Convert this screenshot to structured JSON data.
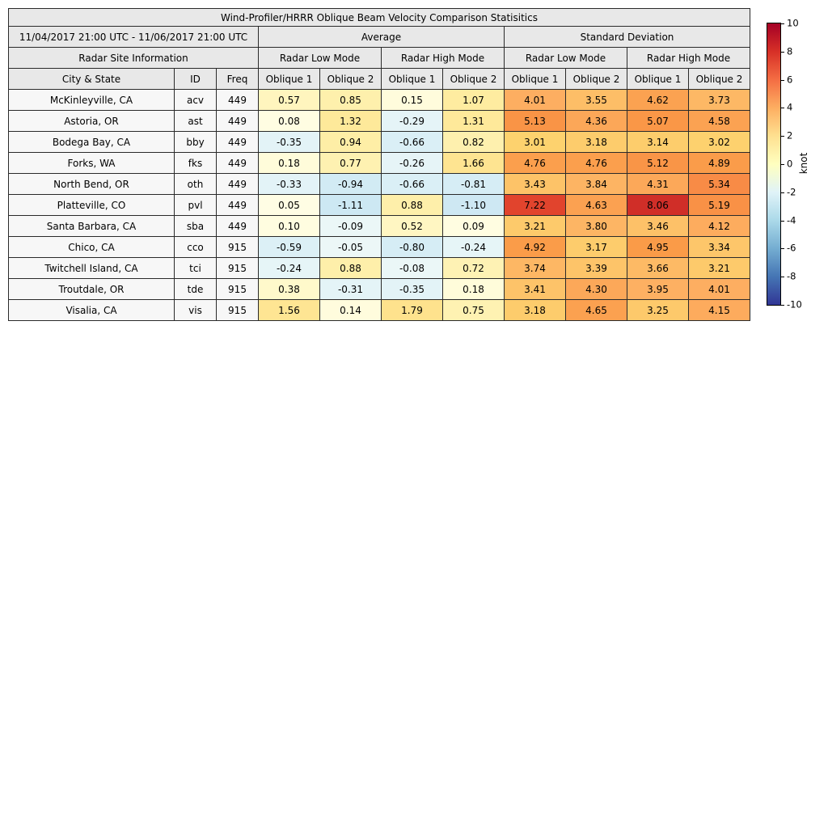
{
  "chart_data": {
    "type": "table",
    "title": "Wind-Profiler/HRRR Oblique Beam Velocity Comparison Statisitics",
    "period": "11/04/2017 21:00 UTC - 11/06/2017 21:00 UTC",
    "site_info_header": "Radar Site Information",
    "group_headers": [
      "Average",
      "Standard Deviation"
    ],
    "mode_headers": [
      "Radar Low Mode",
      "Radar High Mode",
      "Radar Low Mode",
      "Radar High Mode"
    ],
    "column_labels": {
      "city": "City & State",
      "id": "ID",
      "freq": "Freq",
      "oblique1": "Oblique 1",
      "oblique2": "Oblique 2"
    },
    "value_columns": [
      "avg_low_oblique1",
      "avg_low_oblique2",
      "avg_high_oblique1",
      "avg_high_oblique2",
      "sd_low_oblique1",
      "sd_low_oblique2",
      "sd_high_oblique1",
      "sd_high_oblique2"
    ],
    "rows": [
      {
        "city": "McKinleyville, CA",
        "id": "acv",
        "freq": "449",
        "values": [
          0.57,
          0.85,
          0.15,
          1.07,
          4.01,
          3.55,
          4.62,
          3.73
        ]
      },
      {
        "city": "Astoria, OR",
        "id": "ast",
        "freq": "449",
        "values": [
          0.08,
          1.32,
          -0.29,
          1.31,
          5.13,
          4.36,
          5.07,
          4.58
        ]
      },
      {
        "city": "Bodega Bay, CA",
        "id": "bby",
        "freq": "449",
        "values": [
          -0.35,
          0.94,
          -0.66,
          0.82,
          3.01,
          3.18,
          3.14,
          3.02
        ]
      },
      {
        "city": "Forks, WA",
        "id": "fks",
        "freq": "449",
        "values": [
          0.18,
          0.77,
          -0.26,
          1.66,
          4.76,
          4.76,
          5.12,
          4.89
        ]
      },
      {
        "city": "North Bend, OR",
        "id": "oth",
        "freq": "449",
        "values": [
          -0.33,
          -0.94,
          -0.66,
          -0.81,
          3.43,
          3.84,
          4.31,
          5.34
        ]
      },
      {
        "city": "Platteville, CO",
        "id": "pvl",
        "freq": "449",
        "values": [
          0.05,
          -1.11,
          0.88,
          -1.1,
          7.22,
          4.63,
          8.06,
          5.19
        ]
      },
      {
        "city": "Santa Barbara, CA",
        "id": "sba",
        "freq": "449",
        "values": [
          0.1,
          -0.09,
          0.52,
          0.09,
          3.21,
          3.8,
          3.46,
          4.12
        ]
      },
      {
        "city": "Chico, CA",
        "id": "cco",
        "freq": "915",
        "values": [
          -0.59,
          -0.05,
          -0.8,
          -0.24,
          4.92,
          3.17,
          4.95,
          3.34
        ]
      },
      {
        "city": "Twitchell Island, CA",
        "id": "tci",
        "freq": "915",
        "values": [
          -0.24,
          0.88,
          -0.08,
          0.72,
          3.74,
          3.39,
          3.66,
          3.21
        ]
      },
      {
        "city": "Troutdale, OR",
        "id": "tde",
        "freq": "915",
        "values": [
          0.38,
          -0.31,
          -0.35,
          0.18,
          3.41,
          4.3,
          3.95,
          4.01
        ]
      },
      {
        "city": "Visalia, CA",
        "id": "vis",
        "freq": "915",
        "values": [
          1.56,
          0.14,
          1.79,
          0.75,
          3.18,
          4.65,
          3.25,
          4.15
        ]
      }
    ],
    "colorbar": {
      "label": "knot",
      "min": -10,
      "max": 10,
      "ticks": [
        10,
        8,
        6,
        4,
        2,
        0,
        -2,
        -4,
        -6,
        -8,
        -10
      ],
      "gradient_stops": [
        "#a50026",
        "#d73027",
        "#f46d43",
        "#fdae61",
        "#fee090",
        "#ffffbf",
        "#e0f3f8",
        "#abd9e9",
        "#74add1",
        "#4575b4",
        "#313695"
      ]
    },
    "cell_colormap": {
      "positive": [
        [
          0,
          "#fffee8"
        ],
        [
          0.3,
          "#fffad0"
        ],
        [
          1,
          "#feeda2"
        ],
        [
          2,
          "#fedf88"
        ],
        [
          3,
          "#fdd26e"
        ],
        [
          4,
          "#fdae61"
        ],
        [
          5,
          "#fa9a47"
        ],
        [
          6,
          "#f46d43"
        ],
        [
          7.5,
          "#dd3b28"
        ],
        [
          10,
          "#a50026"
        ]
      ],
      "negative": [
        [
          0,
          "#eef8f7"
        ],
        [
          0.5,
          "#def1f7"
        ],
        [
          1.2,
          "#cbe7f2"
        ],
        [
          2,
          "#abd9e9"
        ],
        [
          4,
          "#74add1"
        ],
        [
          6,
          "#4575b4"
        ],
        [
          10,
          "#313695"
        ]
      ]
    },
    "colors": {
      "header_bg": "#e8e8e8",
      "site_cell_bg": "#f7f7f7",
      "border": "#2a2a2a"
    }
  }
}
